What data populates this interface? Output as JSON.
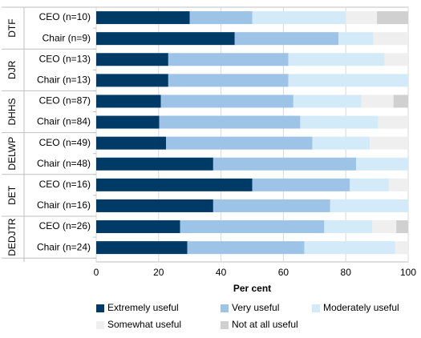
{
  "chart_data": {
    "type": "bar",
    "orientation": "horizontal",
    "stacked": true,
    "xlabel": "Per cent",
    "xlim": [
      0,
      100
    ],
    "xticks": [
      "0",
      "20",
      "40",
      "60",
      "80",
      "100"
    ],
    "groups": [
      {
        "name": "DTF",
        "rows": [
          {
            "label": "CEO (n=10)",
            "values": [
              30,
              20,
              30,
              10,
              10
            ]
          },
          {
            "label": "Chair (n=9)",
            "values": [
              44.4,
              33.3,
              11.1,
              11.2,
              0
            ]
          }
        ]
      },
      {
        "name": "DJR",
        "rows": [
          {
            "label": "CEO (n=13)",
            "values": [
              23.1,
              38.5,
              30.8,
              7.6,
              0
            ]
          },
          {
            "label": "Chair (n=13)",
            "values": [
              23.1,
              38.5,
              38.4,
              0,
              0
            ]
          }
        ]
      },
      {
        "name": "DHHS",
        "rows": [
          {
            "label": "CEO (n=87)",
            "values": [
              20.7,
              42.5,
              21.8,
              10.3,
              4.7
            ]
          },
          {
            "label": "Chair (n=84)",
            "values": [
              20.2,
              45.2,
              25.0,
              9.6,
              0
            ]
          }
        ]
      },
      {
        "name": "DELWP",
        "rows": [
          {
            "label": "CEO (n=49)",
            "values": [
              22.4,
              46.9,
              18.4,
              12.3,
              0
            ]
          },
          {
            "label": "Chair (n=48)",
            "values": [
              37.5,
              45.8,
              16.7,
              0,
              0
            ]
          }
        ]
      },
      {
        "name": "DET",
        "rows": [
          {
            "label": "CEO (n=16)",
            "values": [
              50,
              31.3,
              12.5,
              6.2,
              0
            ]
          },
          {
            "label": "Chair (n=16)",
            "values": [
              37.5,
              37.5,
              25,
              0,
              0
            ]
          }
        ]
      },
      {
        "name": "DEDJTR",
        "rows": [
          {
            "label": "CEO (n=26)",
            "values": [
              26.9,
              46.2,
              15.4,
              7.7,
              3.8
            ]
          },
          {
            "label": "Chair (n=24)",
            "values": [
              29.2,
              37.5,
              29.1,
              4.2,
              0
            ]
          }
        ]
      }
    ],
    "series": [
      {
        "name": "Extremely useful",
        "color": "#003a66"
      },
      {
        "name": "Very useful",
        "color": "#9dc3e6"
      },
      {
        "name": "Moderately useful",
        "color": "#d3eaf9"
      },
      {
        "name": "Somewhat useful",
        "color": "#efefef"
      },
      {
        "name": "Not at all useful",
        "color": "#d0d0d0"
      }
    ],
    "legend_position": "bottom",
    "grid": true
  }
}
